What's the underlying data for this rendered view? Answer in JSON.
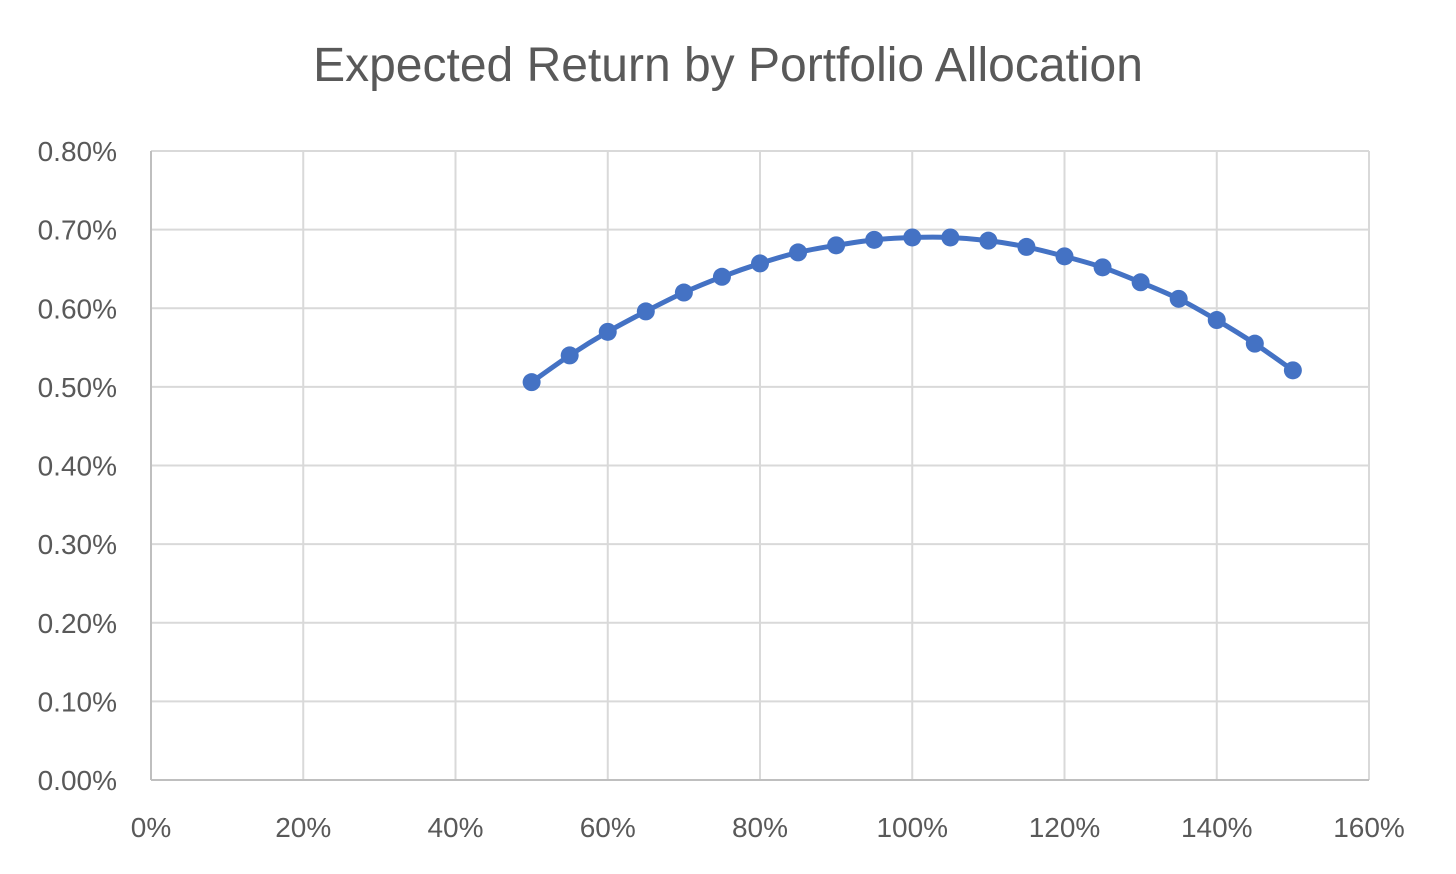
{
  "chart_data": {
    "type": "scatter",
    "title": "Expected Return by Portfolio Allocation",
    "xlabel": "",
    "ylabel": "",
    "xlim": [
      0,
      1.6
    ],
    "ylim": [
      0,
      0.008
    ],
    "x_ticks": [
      0,
      0.2,
      0.4,
      0.6,
      0.8,
      1.0,
      1.2,
      1.4,
      1.6
    ],
    "x_tick_labels": [
      "0%",
      "20%",
      "40%",
      "60%",
      "80%",
      "100%",
      "120%",
      "140%",
      "160%"
    ],
    "y_ticks": [
      0,
      0.001,
      0.002,
      0.003,
      0.004,
      0.005,
      0.006,
      0.007,
      0.008
    ],
    "y_tick_labels": [
      "0.00%",
      "0.10%",
      "0.20%",
      "0.30%",
      "0.40%",
      "0.50%",
      "0.60%",
      "0.70%",
      "0.80%"
    ],
    "grid": true,
    "legend": "none",
    "style": "smooth line with markers",
    "series": [
      {
        "color": "#4472C4",
        "x": [
          0.5,
          0.55,
          0.6,
          0.65,
          0.7,
          0.75,
          0.8,
          0.85,
          0.9,
          0.95,
          1.0,
          1.05,
          1.1,
          1.15,
          1.2,
          1.25,
          1.3,
          1.35,
          1.4,
          1.45,
          1.5
        ],
        "y": [
          0.00506,
          0.0054,
          0.0057,
          0.00596,
          0.0062,
          0.0064,
          0.00657,
          0.00671,
          0.0068,
          0.00687,
          0.0069,
          0.0069,
          0.00686,
          0.00678,
          0.00666,
          0.00652,
          0.00633,
          0.00612,
          0.00585,
          0.00555,
          0.00521
        ]
      }
    ]
  }
}
